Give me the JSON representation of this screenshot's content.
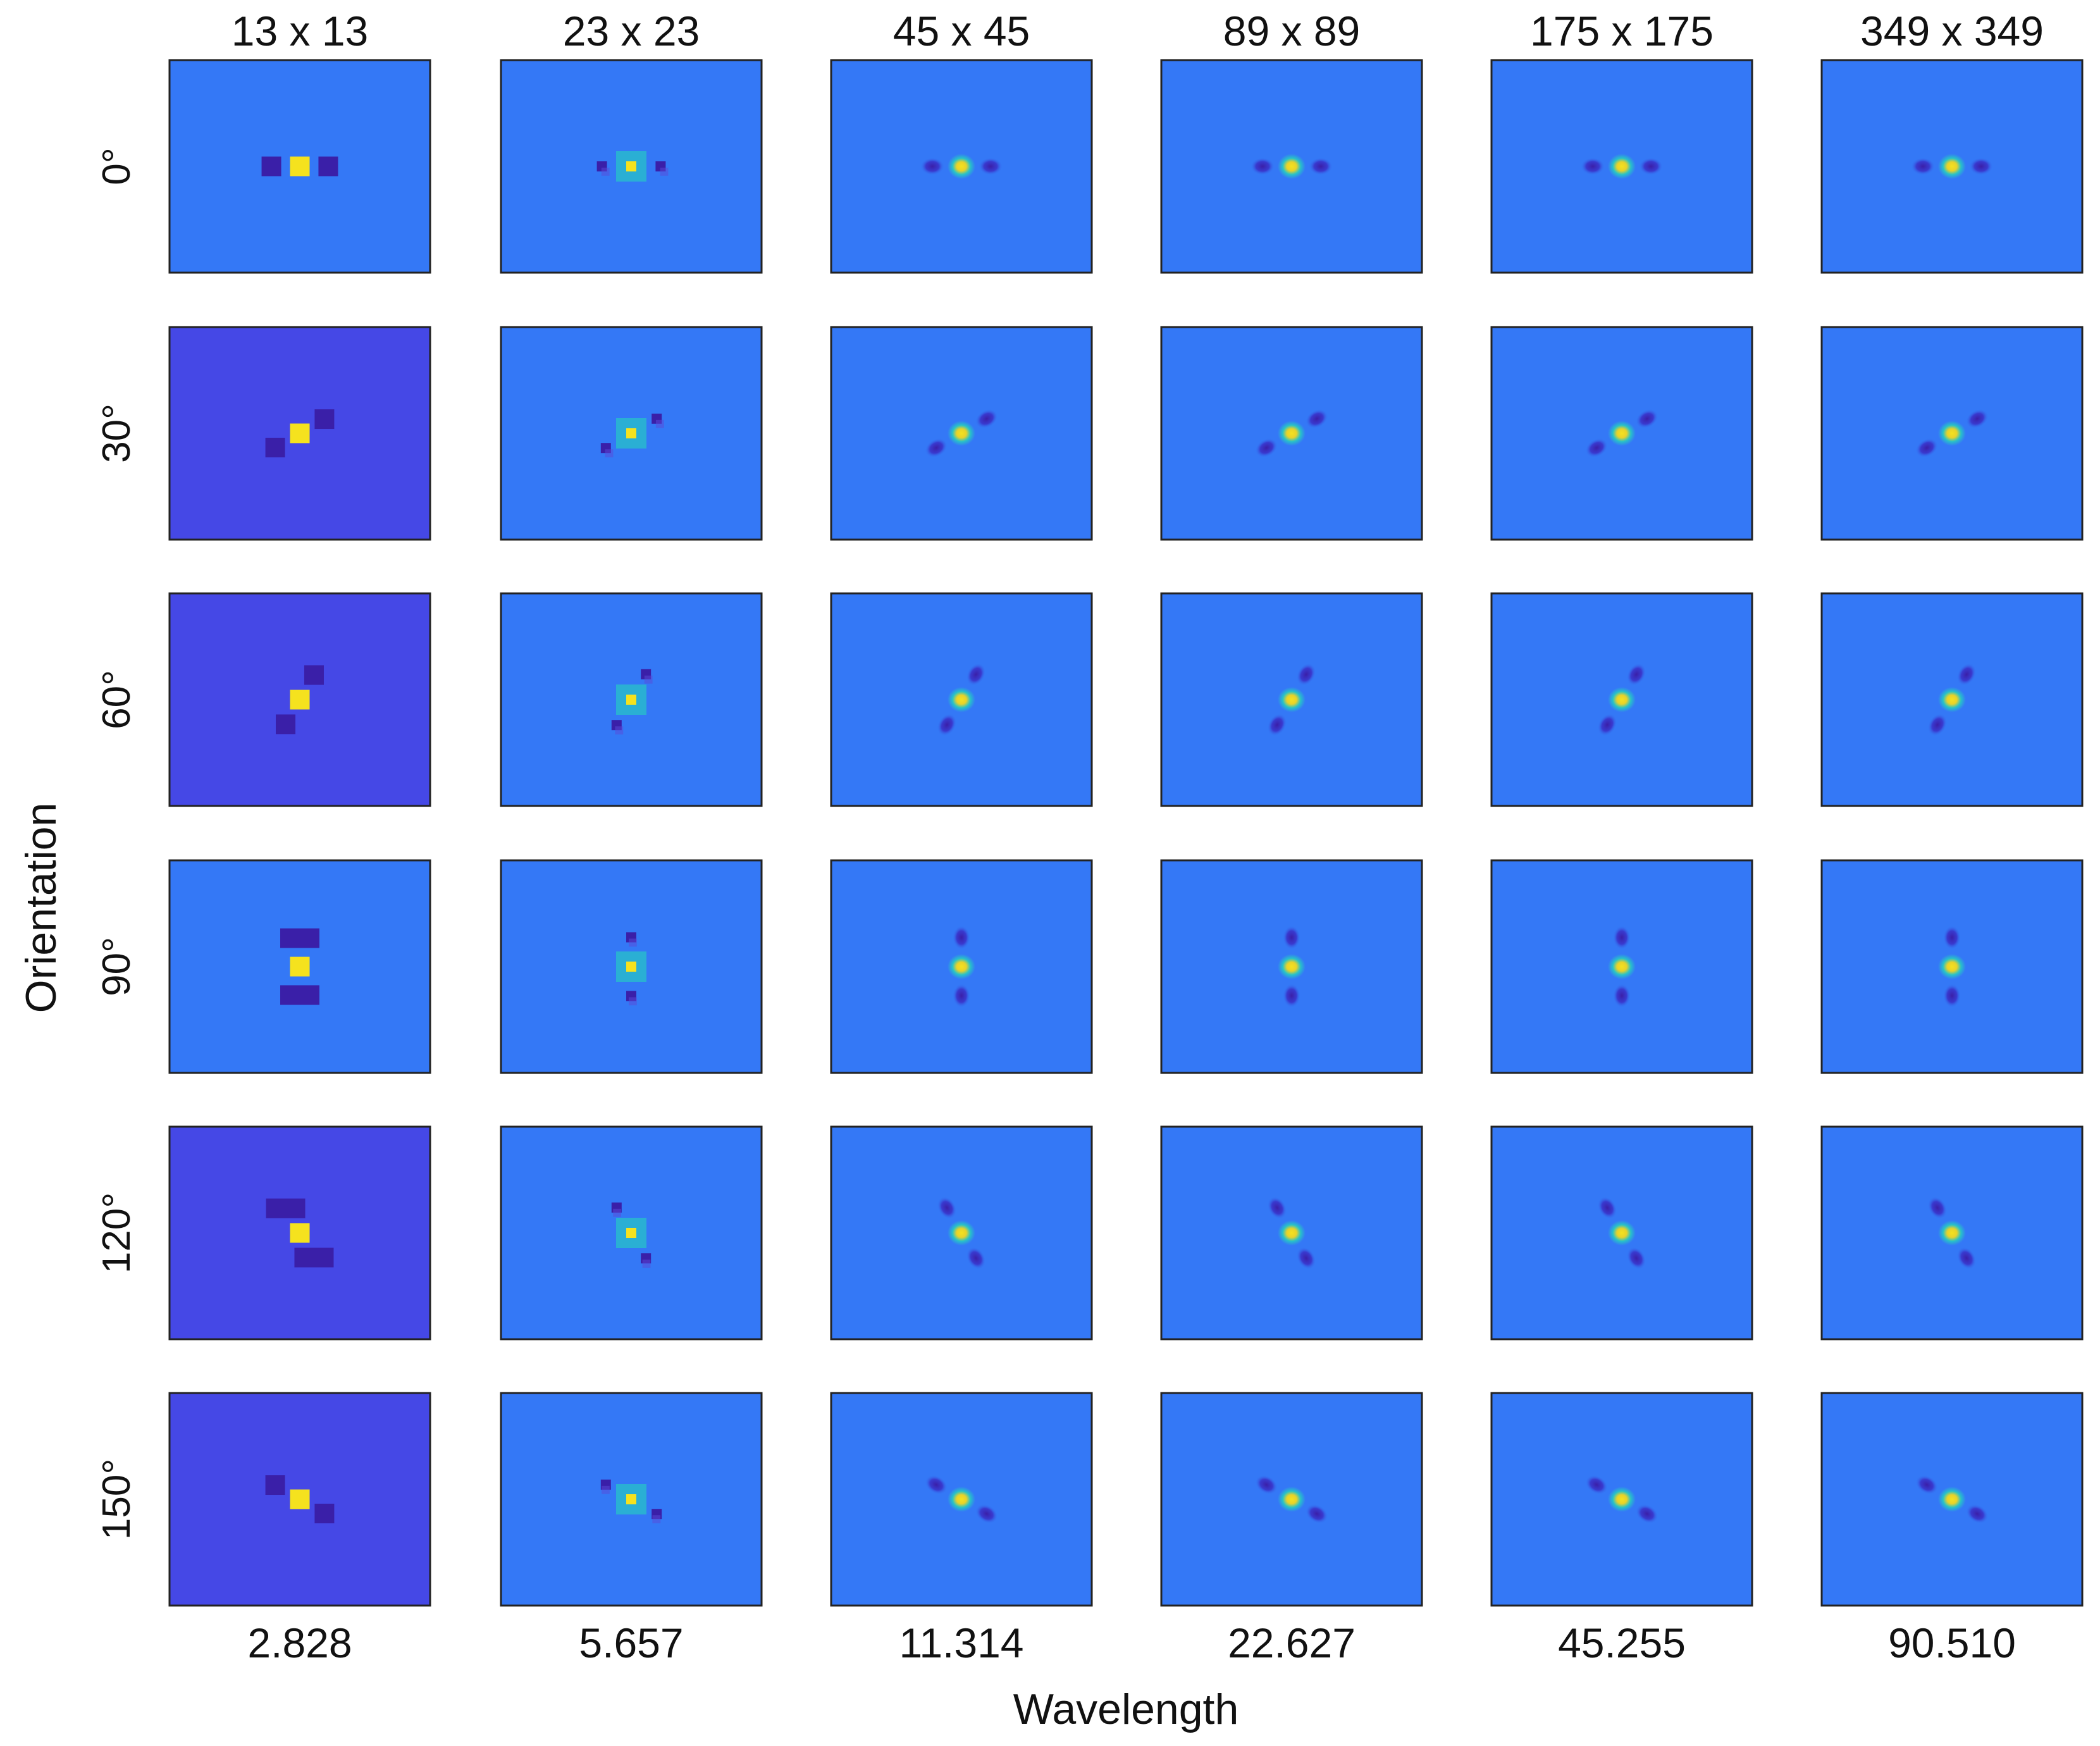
{
  "chart_data": {
    "type": "heatmap",
    "title": "",
    "xlabel": "Wavelength",
    "ylabel": "Orientation",
    "kernel_sizes": [
      "13 x 13",
      "23 x 23",
      "45 x 45",
      "89 x 89",
      "175 x 175",
      "349 x 349"
    ],
    "wavelength_labels": [
      "2.828",
      "5.657",
      "11.314",
      "22.627",
      "45.255",
      "90.510"
    ],
    "wavelengths": [
      2.828,
      5.657,
      11.314,
      22.627,
      45.255,
      90.51
    ],
    "orientation_labels": [
      "0°",
      "30°",
      "60°",
      "90°",
      "120°",
      "150°"
    ],
    "orientations_deg": [
      0,
      30,
      60,
      90,
      120,
      150
    ],
    "grid": false,
    "colors": {
      "background_default": "#3478f6",
      "background_low": "#4548e6",
      "negative_lobe": "#3a1fa8",
      "ring": "#27c2c8",
      "peak": "#f5e21e",
      "frame": "#222222"
    }
  }
}
